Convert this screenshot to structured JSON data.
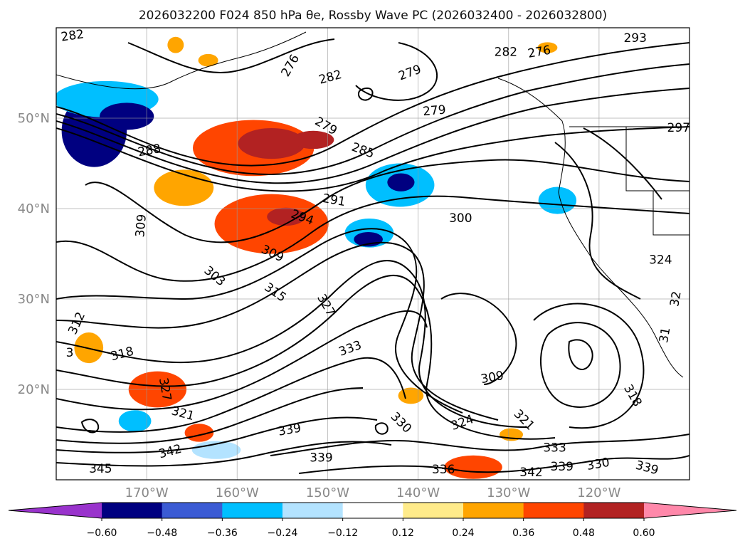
{
  "chart_data": {
    "type": "heatmap",
    "title": "2026032200 F024 850 hPa θe, Rossby Wave PC (2026032400 - 2026032800)",
    "x_ticks": [
      "170°W",
      "160°W",
      "150°W",
      "140°W",
      "130°W",
      "120°W"
    ],
    "y_ticks": [
      "50°N",
      "40°N",
      "30°N",
      "20°N"
    ],
    "xlim": [
      -180,
      -110
    ],
    "ylim": [
      10,
      60
    ],
    "grid": true,
    "colorbar": {
      "orientation": "horizontal",
      "extend": "both",
      "ticks": [
        "−0.60",
        "−0.48",
        "−0.36",
        "−0.24",
        "−0.12",
        "0.12",
        "0.24",
        "0.36",
        "0.48",
        "0.60"
      ],
      "boundaries": [
        -0.6,
        -0.48,
        -0.36,
        -0.24,
        -0.12,
        0.12,
        0.24,
        0.36,
        0.48,
        0.6
      ],
      "colors": [
        "#9933cc",
        "#000080",
        "#3b5bd4",
        "#00bfff",
        "#b3e3ff",
        "#ffffff",
        "#ffeb8a",
        "#ffa500",
        "#ff4500",
        "#b22222",
        "#ff88aa"
      ]
    },
    "contour_labels": [
      {
        "text": "282",
        "lon": -178.2,
        "lat": 59.1,
        "rot": -8
      },
      {
        "text": "282",
        "lon": -149.7,
        "lat": 54.5,
        "rot": -15
      },
      {
        "text": "279",
        "lon": -140.9,
        "lat": 55.0,
        "rot": -20
      },
      {
        "text": "279",
        "lon": -138.2,
        "lat": 50.8,
        "rot": -5
      },
      {
        "text": "282",
        "lon": -130.3,
        "lat": 57.3,
        "rot": 0
      },
      {
        "text": "276",
        "lon": -126.6,
        "lat": 57.3,
        "rot": -10
      },
      {
        "text": "276",
        "lon": -154.1,
        "lat": 55.8,
        "rot": -60
      },
      {
        "text": "288",
        "lon": -169.7,
        "lat": 46.4,
        "rot": -10
      },
      {
        "text": "279",
        "lon": -150.2,
        "lat": 49.1,
        "rot": 30
      },
      {
        "text": "285",
        "lon": -146.1,
        "lat": 46.4,
        "rot": 20
      },
      {
        "text": "291",
        "lon": -149.3,
        "lat": 40.9,
        "rot": 10
      },
      {
        "text": "294",
        "lon": -152.8,
        "lat": 39.0,
        "rot": 20
      },
      {
        "text": "300",
        "lon": -135.3,
        "lat": 38.9,
        "rot": 0
      },
      {
        "text": "309",
        "lon": -170.6,
        "lat": 38.1,
        "rot": -85
      },
      {
        "text": "309",
        "lon": -156.1,
        "lat": 35.0,
        "rot": 25
      },
      {
        "text": "303",
        "lon": -162.5,
        "lat": 32.5,
        "rot": 40
      },
      {
        "text": "315",
        "lon": -155.8,
        "lat": 30.7,
        "rot": 35
      },
      {
        "text": "324",
        "lon": -113.2,
        "lat": 34.3,
        "rot": 0
      },
      {
        "text": "327",
        "lon": -150.2,
        "lat": 29.3,
        "rot": 60
      },
      {
        "text": "312",
        "lon": -177.7,
        "lat": 27.3,
        "rot": -65
      },
      {
        "text": "318",
        "lon": -172.7,
        "lat": 23.9,
        "rot": -15
      },
      {
        "text": "333",
        "lon": -147.5,
        "lat": 24.5,
        "rot": -20
      },
      {
        "text": "327",
        "lon": -168.0,
        "lat": 20.0,
        "rot": 80
      },
      {
        "text": "321",
        "lon": -166.0,
        "lat": 17.3,
        "rot": 15
      },
      {
        "text": "309",
        "lon": -131.8,
        "lat": 21.3,
        "rot": -10
      },
      {
        "text": "318",
        "lon": -116.3,
        "lat": 19.3,
        "rot": 60
      },
      {
        "text": "330",
        "lon": -141.9,
        "lat": 16.3,
        "rot": 45
      },
      {
        "text": "324",
        "lon": -135.1,
        "lat": 16.3,
        "rot": -20
      },
      {
        "text": "321",
        "lon": -128.3,
        "lat": 16.6,
        "rot": 45
      },
      {
        "text": "339",
        "lon": -154.2,
        "lat": 15.5,
        "rot": -10
      },
      {
        "text": "342",
        "lon": -167.4,
        "lat": 13.1,
        "rot": -15
      },
      {
        "text": "339",
        "lon": -150.7,
        "lat": 12.4,
        "rot": 0
      },
      {
        "text": "345",
        "lon": -175.1,
        "lat": 11.2,
        "rot": 0
      },
      {
        "text": "336",
        "lon": -137.2,
        "lat": 11.1,
        "rot": 0
      },
      {
        "text": "333",
        "lon": -124.9,
        "lat": 13.5,
        "rot": 0
      },
      {
        "text": "342",
        "lon": -127.5,
        "lat": 10.8,
        "rot": 0
      },
      {
        "text": "339",
        "lon": -124.1,
        "lat": 11.4,
        "rot": 0
      },
      {
        "text": "330",
        "lon": -120.1,
        "lat": 11.7,
        "rot": -10
      },
      {
        "text": "339",
        "lon": -114.7,
        "lat": 11.3,
        "rot": 15
      },
      {
        "text": "297",
        "lon": -111.2,
        "lat": 48.9,
        "rot": 0
      },
      {
        "text": "293",
        "lon": -116.0,
        "lat": 58.8,
        "rot": 0
      },
      {
        "text": "32",
        "lon": -111.5,
        "lat": 30.0,
        "rot": -80
      },
      {
        "text": "31",
        "lon": -112.7,
        "lat": 26.0,
        "rot": -80
      },
      {
        "text": "3",
        "lon": -178.5,
        "lat": 24.0,
        "rot": 0
      }
    ],
    "anomaly_patches": [
      {
        "lon": -175.8,
        "lat": 48.6,
        "rx": 3.6,
        "ry": 4.0,
        "value": -0.5
      },
      {
        "lon": -174.5,
        "lat": 52.1,
        "rx": 5.8,
        "ry": 2.0,
        "value": -0.36
      },
      {
        "lon": -172.2,
        "lat": 50.2,
        "rx": 3.0,
        "ry": 1.5,
        "value": -0.55
      },
      {
        "lon": -158.2,
        "lat": 46.7,
        "rx": 6.7,
        "ry": 3.1,
        "value": 0.36
      },
      {
        "lon": -156.2,
        "lat": 47.2,
        "rx": 3.7,
        "ry": 1.7,
        "value": 0.48
      },
      {
        "lon": -151.6,
        "lat": 47.6,
        "rx": 2.3,
        "ry": 1.0,
        "value": 0.55
      },
      {
        "lon": -165.9,
        "lat": 42.3,
        "rx": 3.3,
        "ry": 2.0,
        "value": 0.26
      },
      {
        "lon": -156.2,
        "lat": 38.3,
        "rx": 6.3,
        "ry": 3.3,
        "value": 0.38
      },
      {
        "lon": -154.6,
        "lat": 39.1,
        "rx": 2.1,
        "ry": 1.0,
        "value": 0.5
      },
      {
        "lon": -142.0,
        "lat": 42.6,
        "rx": 3.8,
        "ry": 2.4,
        "value": -0.28
      },
      {
        "lon": -141.9,
        "lat": 42.9,
        "rx": 1.5,
        "ry": 1.0,
        "value": -0.5
      },
      {
        "lon": -145.4,
        "lat": 37.3,
        "rx": 2.7,
        "ry": 1.6,
        "value": -0.3
      },
      {
        "lon": -145.5,
        "lat": 36.6,
        "rx": 1.6,
        "ry": 0.8,
        "value": -0.5
      },
      {
        "lon": -124.6,
        "lat": 40.9,
        "rx": 2.1,
        "ry": 1.5,
        "value": -0.3
      },
      {
        "lon": -176.4,
        "lat": 24.6,
        "rx": 1.6,
        "ry": 1.7,
        "value": 0.3
      },
      {
        "lon": -168.8,
        "lat": 20.0,
        "rx": 3.2,
        "ry": 2.0,
        "value": 0.38
      },
      {
        "lon": -164.2,
        "lat": 15.2,
        "rx": 1.6,
        "ry": 1.0,
        "value": 0.38
      },
      {
        "lon": -171.3,
        "lat": 16.5,
        "rx": 1.8,
        "ry": 1.2,
        "value": -0.3
      },
      {
        "lon": -162.3,
        "lat": 13.3,
        "rx": 2.7,
        "ry": 1.0,
        "value": -0.24
      },
      {
        "lon": -133.9,
        "lat": 11.4,
        "rx": 3.2,
        "ry": 1.3,
        "value": 0.38
      },
      {
        "lon": -140.8,
        "lat": 19.3,
        "rx": 1.4,
        "ry": 0.9,
        "value": 0.26
      },
      {
        "lon": -129.7,
        "lat": 15.0,
        "rx": 1.3,
        "ry": 0.7,
        "value": 0.26
      },
      {
        "lon": -166.8,
        "lat": 58.1,
        "rx": 0.9,
        "ry": 0.9,
        "value": 0.26
      },
      {
        "lon": -163.2,
        "lat": 56.4,
        "rx": 1.1,
        "ry": 0.7,
        "value": 0.26
      },
      {
        "lon": -125.7,
        "lat": 57.8,
        "rx": 1.1,
        "ry": 0.6,
        "value": 0.26
      }
    ]
  }
}
